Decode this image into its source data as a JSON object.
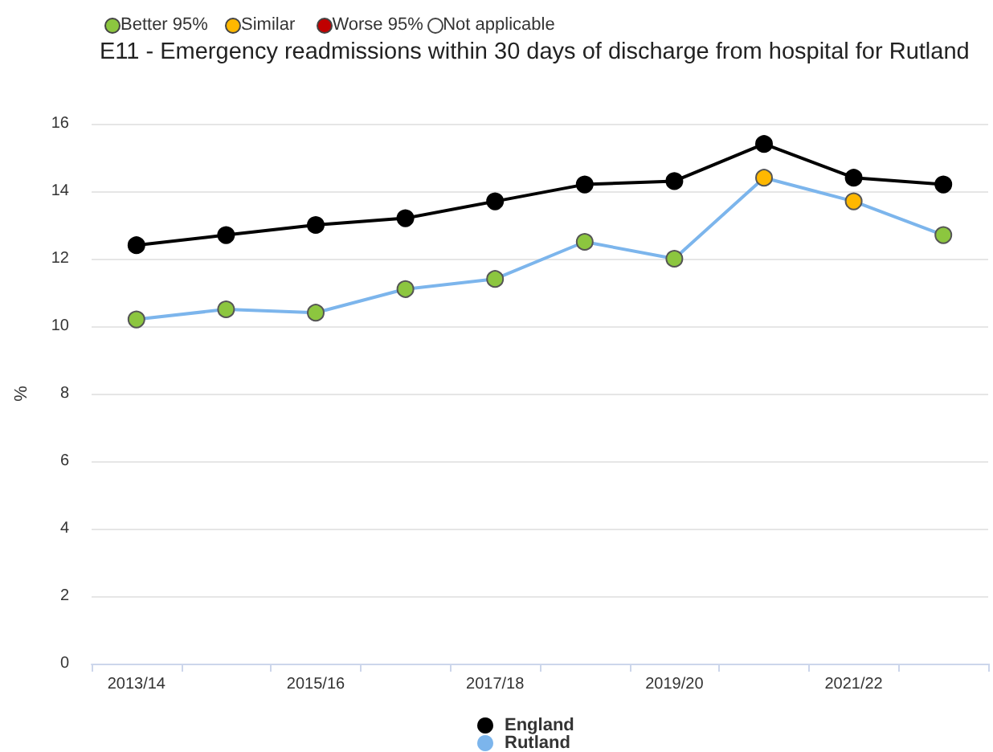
{
  "chart_data": {
    "type": "line",
    "title": "E11 - Emergency readmissions within 30 days of discharge from hospital for Rutland",
    "annotations": [
      "Better 95%",
      "Similar",
      "Worse 95%",
      "Not applicable"
    ],
    "ylabel": "%",
    "categories": [
      "2013/14",
      null,
      "2015/16",
      null,
      "2017/18",
      null,
      "2019/20",
      null,
      "2021/22",
      null
    ],
    "series": [
      {
        "name": "England",
        "color": "#000000",
        "values": [
          12.4,
          12.7,
          13.0,
          13.2,
          13.7,
          14.2,
          14.3,
          15.4,
          14.4,
          14.2
        ]
      },
      {
        "name": "Rutland",
        "color": "#7cb5ec",
        "colors": [
          "#8cc63f",
          "#8cc63f",
          "#8cc63f",
          "#8cc63f",
          "#8cc63f",
          "#8cc63f",
          "#8cc63f",
          "#ffb800",
          "#ffb800",
          "#8cc63f"
        ],
        "values": [
          10.2,
          10.5,
          10.4,
          11.1,
          11.4,
          12.5,
          12.0,
          14.4,
          13.7,
          12.7
        ]
      }
    ],
    "ylim": [
      0,
      16
    ],
    "yticks": [
      0,
      2,
      4,
      6,
      8,
      10,
      12,
      14,
      16
    ],
    "grid": "y",
    "legend": "bottom",
    "marker": "circle",
    "line_style": "solid"
  }
}
